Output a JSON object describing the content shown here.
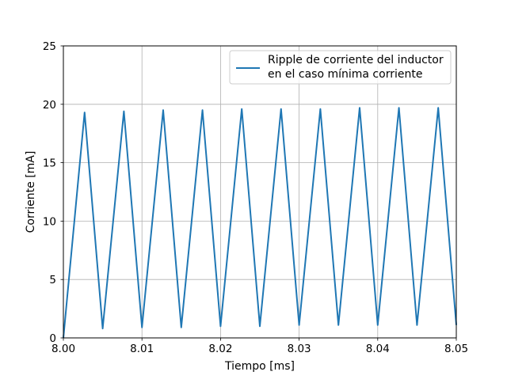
{
  "chart_data": {
    "type": "line",
    "xlabel": "Tiempo [ms]",
    "ylabel": "Corriente [mA]",
    "xlim": [
      8.0,
      8.05
    ],
    "ylim": [
      0,
      25
    ],
    "xticks": [
      "8.00",
      "8.01",
      "8.02",
      "8.03",
      "8.04",
      "8.05"
    ],
    "xtick_values": [
      8.0,
      8.01,
      8.02,
      8.03,
      8.04,
      8.05
    ],
    "yticks": [
      "0",
      "5",
      "10",
      "15",
      "20",
      "25"
    ],
    "ytick_values": [
      0,
      5,
      10,
      15,
      20,
      25
    ],
    "grid": true,
    "legend_position": "top-right",
    "series": [
      {
        "name": "Ripple de corriente del inductor\nen el caso mínima corriente",
        "legend_lines": [
          "Ripple de corriente del inductor",
          "en el caso mínima corriente"
        ],
        "color": "#1f77b4",
        "x": [
          8.0,
          8.0027,
          8.005,
          8.0077,
          8.01,
          8.0127,
          8.015,
          8.0177,
          8.02,
          8.0227,
          8.025,
          8.0277,
          8.03,
          8.0327,
          8.035,
          8.0377,
          8.04,
          8.0427,
          8.045,
          8.0477,
          8.05
        ],
        "y": [
          0.0,
          19.3,
          0.8,
          19.4,
          0.9,
          19.5,
          0.9,
          19.5,
          1.0,
          19.6,
          1.0,
          19.6,
          1.1,
          19.6,
          1.1,
          19.7,
          1.1,
          19.7,
          1.1,
          19.7,
          1.1
        ]
      }
    ]
  }
}
